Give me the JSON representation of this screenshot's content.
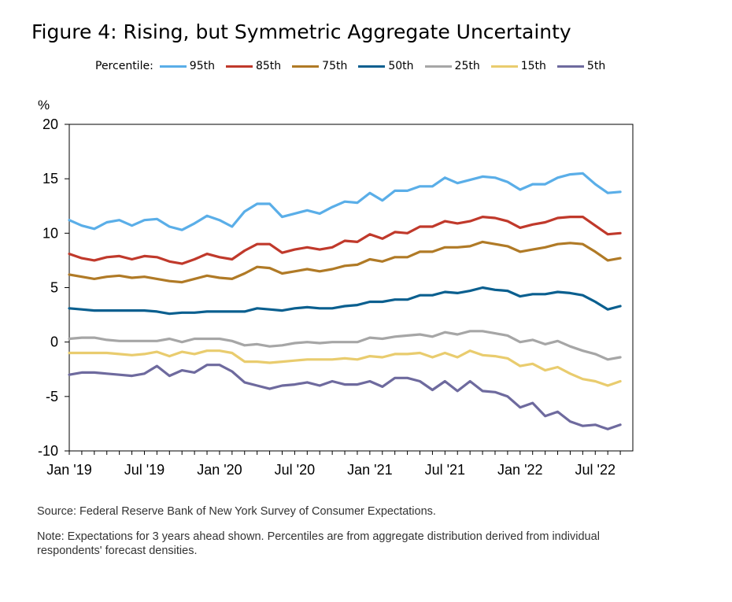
{
  "title": "Figure 4: Rising, but Symmetric Aggregate Uncertainty",
  "legend_label": "Percentile:",
  "source": "Source: Federal Reserve Bank of New York Survey of Consumer Expectations.",
  "note": "Note: Expectations for 3 years ahead shown. Percentiles are from aggregate distribution derived from individual respondents' forecast densities.",
  "chart_data": {
    "type": "line",
    "ylabel": "%",
    "ylim": [
      -10,
      20
    ],
    "yticks": [
      20,
      15,
      10,
      5,
      0,
      -5,
      -10
    ],
    "xlim": [
      0,
      45
    ],
    "xticks": [
      {
        "label": "Jan '19",
        "index": 0
      },
      {
        "label": "Jul '19",
        "index": 6
      },
      {
        "label": "Jan '20",
        "index": 12
      },
      {
        "label": "Jul '20",
        "index": 18
      },
      {
        "label": "Jan '21",
        "index": 24
      },
      {
        "label": "Jul '21",
        "index": 30
      },
      {
        "label": "Jan '22",
        "index": 36
      },
      {
        "label": "Jul '22",
        "index": 42
      }
    ],
    "x": [
      "2019-01",
      "2019-02",
      "2019-03",
      "2019-04",
      "2019-05",
      "2019-06",
      "2019-07",
      "2019-08",
      "2019-09",
      "2019-10",
      "2019-11",
      "2019-12",
      "2020-01",
      "2020-02",
      "2020-03",
      "2020-04",
      "2020-05",
      "2020-06",
      "2020-07",
      "2020-08",
      "2020-09",
      "2020-10",
      "2020-11",
      "2020-12",
      "2021-01",
      "2021-02",
      "2021-03",
      "2021-04",
      "2021-05",
      "2021-06",
      "2021-07",
      "2021-08",
      "2021-09",
      "2021-10",
      "2021-11",
      "2021-12",
      "2022-01",
      "2022-02",
      "2022-03",
      "2022-04",
      "2022-05",
      "2022-06",
      "2022-07",
      "2022-08",
      "2022-09"
    ],
    "grid": false,
    "legend_position": "top",
    "series": [
      {
        "name": "95th",
        "color": "#5aaee8",
        "values": [
          11.2,
          10.7,
          10.4,
          11.0,
          11.2,
          10.7,
          11.2,
          11.3,
          10.6,
          10.3,
          10.9,
          11.6,
          11.2,
          10.6,
          12.0,
          12.7,
          12.7,
          11.5,
          11.8,
          12.1,
          11.8,
          12.4,
          12.9,
          12.8,
          13.7,
          13.0,
          13.9,
          13.9,
          14.3,
          14.3,
          15.1,
          14.6,
          14.9,
          15.2,
          15.1,
          14.7,
          14.0,
          14.5,
          14.5,
          15.1,
          15.4,
          15.5,
          14.5,
          13.7,
          13.8
        ]
      },
      {
        "name": "85th",
        "color": "#c0392b",
        "values": [
          8.1,
          7.7,
          7.5,
          7.8,
          7.9,
          7.6,
          7.9,
          7.8,
          7.4,
          7.2,
          7.6,
          8.1,
          7.8,
          7.6,
          8.4,
          9.0,
          9.0,
          8.2,
          8.5,
          8.7,
          8.5,
          8.7,
          9.3,
          9.2,
          9.9,
          9.5,
          10.1,
          10.0,
          10.6,
          10.6,
          11.1,
          10.9,
          11.1,
          11.5,
          11.4,
          11.1,
          10.5,
          10.8,
          11.0,
          11.4,
          11.5,
          11.5,
          10.7,
          9.9,
          10.0
        ]
      },
      {
        "name": "75th",
        "color": "#b07a26",
        "values": [
          6.2,
          6.0,
          5.8,
          6.0,
          6.1,
          5.9,
          6.0,
          5.8,
          5.6,
          5.5,
          5.8,
          6.1,
          5.9,
          5.8,
          6.3,
          6.9,
          6.8,
          6.3,
          6.5,
          6.7,
          6.5,
          6.7,
          7.0,
          7.1,
          7.6,
          7.4,
          7.8,
          7.8,
          8.3,
          8.3,
          8.7,
          8.7,
          8.8,
          9.2,
          9.0,
          8.8,
          8.3,
          8.5,
          8.7,
          9.0,
          9.1,
          9.0,
          8.3,
          7.5,
          7.7
        ]
      },
      {
        "name": "50th",
        "color": "#0a5f8f",
        "values": [
          3.1,
          3.0,
          2.9,
          2.9,
          2.9,
          2.9,
          2.9,
          2.8,
          2.6,
          2.7,
          2.7,
          2.8,
          2.8,
          2.8,
          2.8,
          3.1,
          3.0,
          2.9,
          3.1,
          3.2,
          3.1,
          3.1,
          3.3,
          3.4,
          3.7,
          3.7,
          3.9,
          3.9,
          4.3,
          4.3,
          4.6,
          4.5,
          4.7,
          5.0,
          4.8,
          4.7,
          4.2,
          4.4,
          4.4,
          4.6,
          4.5,
          4.3,
          3.7,
          3.0,
          3.3
        ]
      },
      {
        "name": "25th",
        "color": "#a6a6a6",
        "values": [
          0.3,
          0.4,
          0.4,
          0.2,
          0.1,
          0.1,
          0.1,
          0.1,
          0.3,
          0.0,
          0.3,
          0.3,
          0.3,
          0.1,
          -0.3,
          -0.2,
          -0.4,
          -0.3,
          -0.1,
          0.0,
          -0.1,
          0.0,
          0.0,
          0.0,
          0.4,
          0.3,
          0.5,
          0.6,
          0.7,
          0.5,
          0.9,
          0.7,
          1.0,
          1.0,
          0.8,
          0.6,
          0.0,
          0.2,
          -0.2,
          0.1,
          -0.4,
          -0.8,
          -1.1,
          -1.6,
          -1.4
        ]
      },
      {
        "name": "15th",
        "color": "#e9cc6e",
        "values": [
          -1.0,
          -1.0,
          -1.0,
          -1.0,
          -1.1,
          -1.2,
          -1.1,
          -0.9,
          -1.3,
          -0.9,
          -1.1,
          -0.8,
          -0.8,
          -1.0,
          -1.8,
          -1.8,
          -1.9,
          -1.8,
          -1.7,
          -1.6,
          -1.6,
          -1.6,
          -1.5,
          -1.6,
          -1.3,
          -1.4,
          -1.1,
          -1.1,
          -1.0,
          -1.4,
          -1.0,
          -1.4,
          -0.8,
          -1.2,
          -1.3,
          -1.5,
          -2.2,
          -2.0,
          -2.6,
          -2.3,
          -2.9,
          -3.4,
          -3.6,
          -4.0,
          -3.6
        ]
      },
      {
        "name": "5th",
        "color": "#6e6a9e",
        "values": [
          -3.0,
          -2.8,
          -2.8,
          -2.9,
          -3.0,
          -3.1,
          -2.9,
          -2.2,
          -3.1,
          -2.6,
          -2.8,
          -2.1,
          -2.1,
          -2.7,
          -3.7,
          -4.0,
          -4.3,
          -4.0,
          -3.9,
          -3.7,
          -4.0,
          -3.6,
          -3.9,
          -3.9,
          -3.6,
          -4.1,
          -3.3,
          -3.3,
          -3.6,
          -4.4,
          -3.6,
          -4.5,
          -3.6,
          -4.5,
          -4.6,
          -5.0,
          -6.0,
          -5.6,
          -6.8,
          -6.4,
          -7.3,
          -7.7,
          -7.6,
          -8.0,
          -7.6
        ]
      }
    ]
  }
}
